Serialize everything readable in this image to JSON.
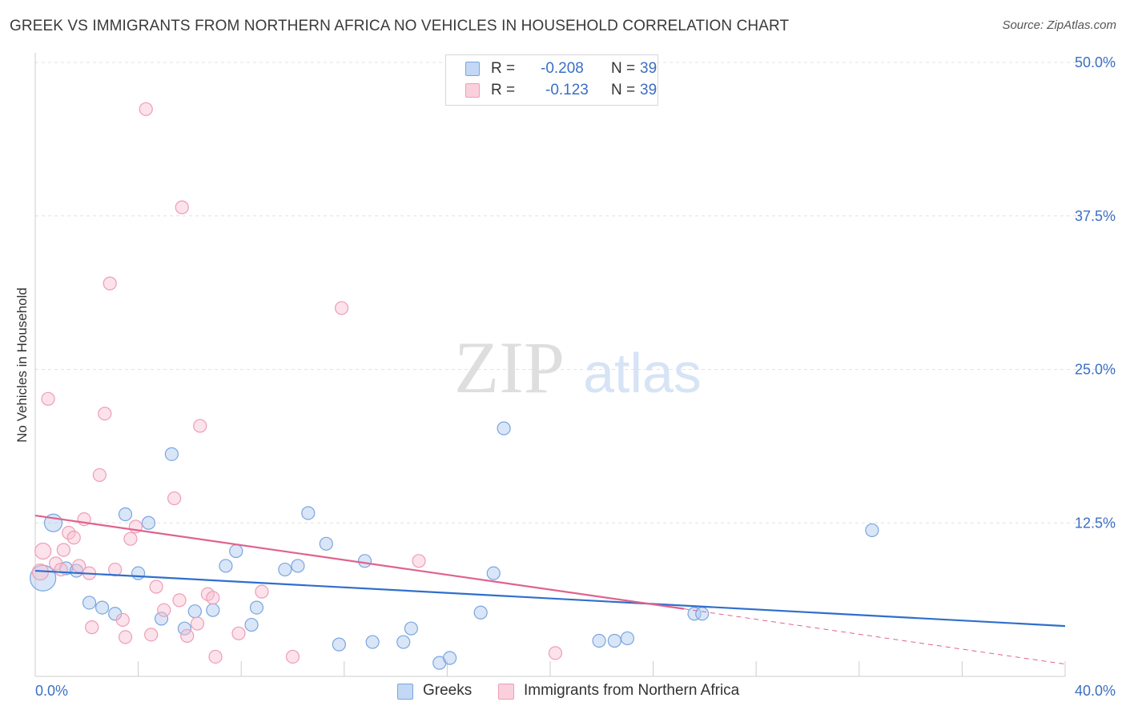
{
  "title": "GREEK VS IMMIGRANTS FROM NORTHERN AFRICA NO VEHICLES IN HOUSEHOLD CORRELATION CHART",
  "source": "Source: ZipAtlas.com",
  "watermark": {
    "zip": "ZIP",
    "atlas": "atlas"
  },
  "legend_top": [
    {
      "r_label": "R =",
      "r_value": "-0.208",
      "n_label": "N =",
      "n_value": "39"
    },
    {
      "r_label": "R =",
      "r_value": "-0.123",
      "n_label": "N =",
      "n_value": "39"
    }
  ],
  "legend_bottom": [
    "Greeks",
    "Immigrants from Northern Africa"
  ],
  "colors": {
    "greeks": "#6b9fe0",
    "greeks_line": "#2f6fcc",
    "immigrants": "#f0a0b8",
    "immigrants_line": "#e0628e",
    "axis_text": "#3a6fc4"
  },
  "chart_data": {
    "type": "scatter",
    "title": "GREEK VS IMMIGRANTS FROM NORTHERN AFRICA NO VEHICLES IN HOUSEHOLD CORRELATION CHART",
    "xlabel": "",
    "ylabel": "No Vehicles in Household",
    "xlim": [
      0,
      40
    ],
    "ylim": [
      0,
      50
    ],
    "x_tick_labels": [
      "0.0%",
      "40.0%"
    ],
    "y_ticks": [
      12.5,
      25.0,
      37.5,
      50.0
    ],
    "y_tick_labels": [
      "12.5%",
      "25.0%",
      "37.5%",
      "50.0%"
    ],
    "grid": true,
    "series": [
      {
        "name": "Greeks",
        "points": [
          [
            0.3,
            8.0
          ],
          [
            0.7,
            12.5
          ],
          [
            1.2,
            8.8
          ],
          [
            1.6,
            8.6
          ],
          [
            2.1,
            6.0
          ],
          [
            2.6,
            5.6
          ],
          [
            3.1,
            5.1
          ],
          [
            3.5,
            13.2
          ],
          [
            4.0,
            8.4
          ],
          [
            4.4,
            12.5
          ],
          [
            4.9,
            4.7
          ],
          [
            5.3,
            18.1
          ],
          [
            5.8,
            3.9
          ],
          [
            6.2,
            5.3
          ],
          [
            6.9,
            5.4
          ],
          [
            7.4,
            9.0
          ],
          [
            7.8,
            10.2
          ],
          [
            8.4,
            4.2
          ],
          [
            8.6,
            5.6
          ],
          [
            9.7,
            8.7
          ],
          [
            10.2,
            9.0
          ],
          [
            10.6,
            13.3
          ],
          [
            11.3,
            10.8
          ],
          [
            11.8,
            2.6
          ],
          [
            12.8,
            9.4
          ],
          [
            13.1,
            2.8
          ],
          [
            14.3,
            2.8
          ],
          [
            14.6,
            3.9
          ],
          [
            15.7,
            1.1
          ],
          [
            16.1,
            1.5
          ],
          [
            17.3,
            5.2
          ],
          [
            17.8,
            8.4
          ],
          [
            18.2,
            20.2
          ],
          [
            21.9,
            2.9
          ],
          [
            22.5,
            2.9
          ],
          [
            23.0,
            3.1
          ],
          [
            25.6,
            5.1
          ],
          [
            25.9,
            5.1
          ],
          [
            32.5,
            11.9
          ]
        ],
        "trend": {
          "x": [
            0,
            40
          ],
          "y": [
            8.6,
            4.1
          ]
        }
      },
      {
        "name": "Immigrants from Northern Africa",
        "points": [
          [
            0.2,
            8.5
          ],
          [
            0.3,
            10.2
          ],
          [
            0.5,
            22.6
          ],
          [
            0.8,
            9.2
          ],
          [
            1.0,
            8.7
          ],
          [
            1.1,
            10.3
          ],
          [
            1.3,
            11.7
          ],
          [
            1.5,
            11.3
          ],
          [
            1.7,
            9.0
          ],
          [
            1.9,
            12.8
          ],
          [
            2.1,
            8.4
          ],
          [
            2.2,
            4.0
          ],
          [
            2.5,
            16.4
          ],
          [
            2.7,
            21.4
          ],
          [
            2.9,
            32.0
          ],
          [
            3.1,
            8.7
          ],
          [
            3.4,
            4.6
          ],
          [
            3.5,
            3.2
          ],
          [
            3.7,
            11.2
          ],
          [
            3.9,
            12.2
          ],
          [
            4.3,
            46.2
          ],
          [
            4.5,
            3.4
          ],
          [
            4.7,
            7.3
          ],
          [
            5.0,
            5.4
          ],
          [
            5.4,
            14.5
          ],
          [
            5.6,
            6.2
          ],
          [
            5.7,
            38.2
          ],
          [
            5.9,
            3.3
          ],
          [
            6.3,
            4.3
          ],
          [
            6.4,
            20.4
          ],
          [
            6.7,
            6.7
          ],
          [
            6.9,
            6.4
          ],
          [
            7.0,
            1.6
          ],
          [
            7.9,
            3.5
          ],
          [
            8.8,
            6.9
          ],
          [
            10.0,
            1.6
          ],
          [
            11.9,
            30.0
          ],
          [
            14.9,
            9.4
          ],
          [
            20.2,
            1.9
          ]
        ],
        "trend": {
          "x": [
            0,
            25.2
          ],
          "y": [
            13.1,
            5.5
          ]
        },
        "trend_dashed": {
          "x": [
            25.2,
            40
          ],
          "y": [
            5.5,
            1.0
          ]
        }
      }
    ]
  }
}
